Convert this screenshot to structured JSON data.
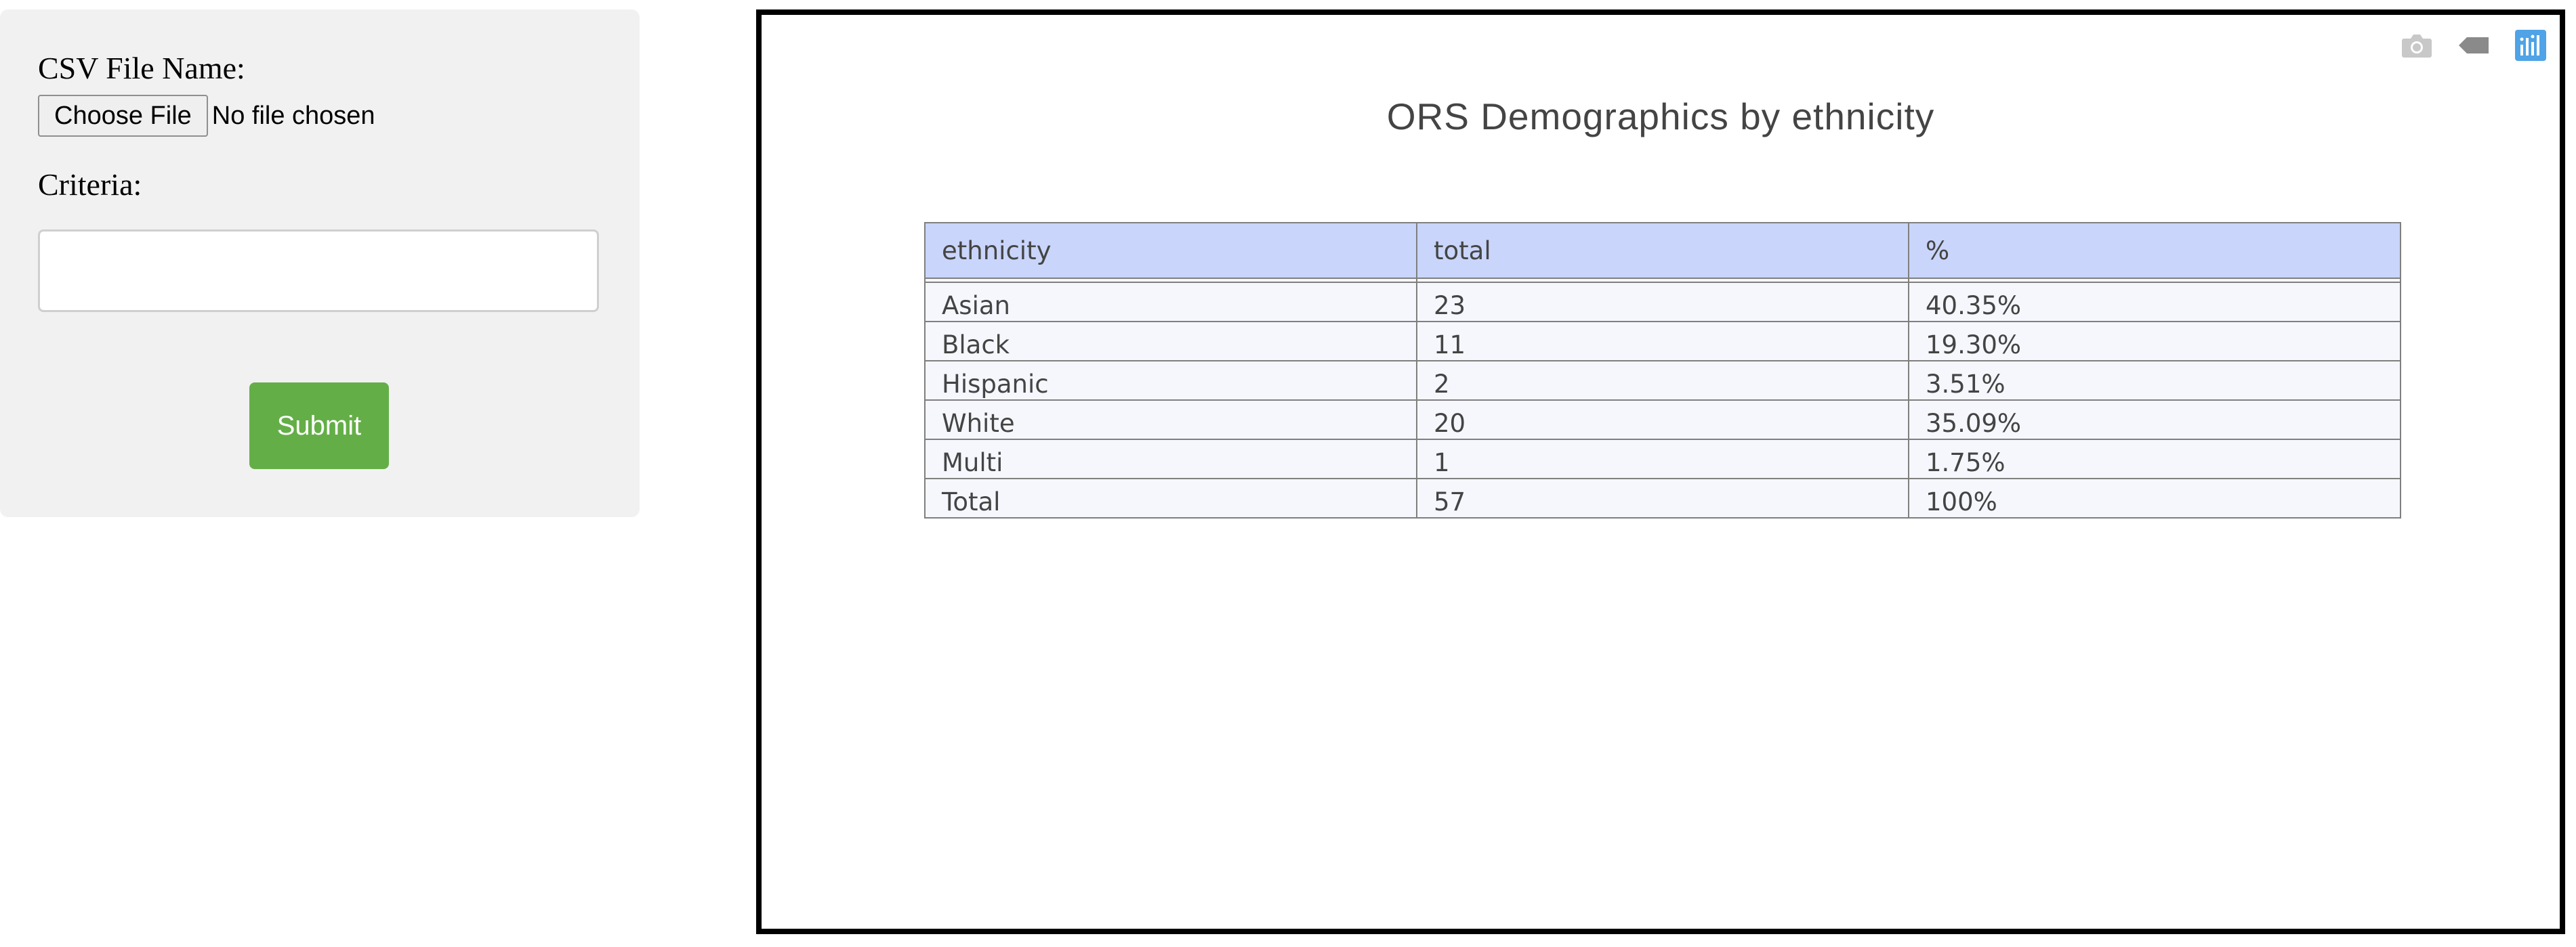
{
  "form": {
    "csv_label": "CSV File Name:",
    "file_button_label": "Choose File",
    "file_status": "No file chosen",
    "criteria_label": "Criteria:",
    "criteria_value": "",
    "submit_label": "Submit"
  },
  "plot": {
    "modebar": {
      "icons": [
        "camera-icon",
        "tag-icon",
        "plotly-logo-icon"
      ],
      "colors": {
        "camera": "#c8c8c8",
        "tag": "#8a8a8a",
        "logo": "#4fa3e6"
      }
    },
    "title": "ORS Demographics by ethnicity"
  },
  "chart_data": {
    "type": "table",
    "title": "ORS Demographics by ethnicity",
    "columns": [
      "ethnicity",
      "total",
      "%"
    ],
    "rows": [
      [
        "Asian",
        "23",
        "40.35%"
      ],
      [
        "Black",
        "11",
        "19.30%"
      ],
      [
        "Hispanic",
        "2",
        "3.51%"
      ],
      [
        "White",
        "20",
        "35.09%"
      ],
      [
        "Multi",
        "1",
        "1.75%"
      ],
      [
        "Total",
        "57",
        "100%"
      ]
    ],
    "header_color": "#c9d5fa",
    "cell_color": "#f5f7fd",
    "line_color": "#7f7f7f"
  }
}
